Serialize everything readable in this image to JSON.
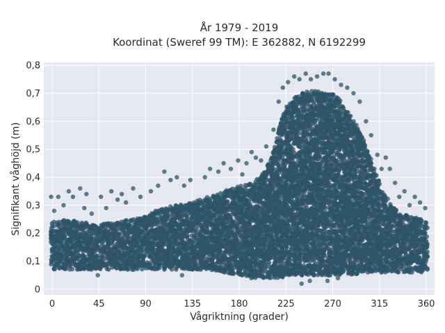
{
  "chart_data": {
    "type": "scatter",
    "title": [
      "År 1979 - 2019",
      "Koordinat (Sweref 99 TM): E 362882, N 6192299"
    ],
    "xlabel": "Vågriktning (grader)",
    "ylabel": "Signifikant våghöjd (m)",
    "xlim": [
      -8,
      368
    ],
    "ylim": [
      -0.02,
      0.81
    ],
    "xticks": [
      0,
      45,
      90,
      135,
      180,
      225,
      270,
      315,
      360
    ],
    "xtick_labels": [
      "0",
      "45",
      "90",
      "135",
      "180",
      "225",
      "270",
      "315",
      "360"
    ],
    "yticks": [
      0,
      0.1,
      0.2,
      0.3,
      0.4,
      0.5,
      0.6,
      0.7,
      0.8
    ],
    "ytick_labels": [
      "0",
      "0,1",
      "0,2",
      "0,3",
      "0,4",
      "0,5",
      "0,6",
      "0,7",
      "0,8"
    ],
    "grid": true,
    "point_color": "#2f5468",
    "background_color": "#e6e8f1",
    "envelope": {
      "description": "upper and lower bounds of the dense point cloud (direction in degrees, wave height in m)",
      "direction": [
        0,
        15,
        30,
        45,
        60,
        75,
        90,
        105,
        120,
        135,
        150,
        165,
        180,
        190,
        200,
        210,
        215,
        220,
        225,
        232,
        240,
        248,
        255,
        262,
        270,
        278,
        285,
        292,
        300,
        310,
        315,
        325,
        335,
        345,
        355,
        360
      ],
      "upper": [
        0.24,
        0.25,
        0.24,
        0.23,
        0.24,
        0.25,
        0.26,
        0.29,
        0.3,
        0.31,
        0.33,
        0.35,
        0.37,
        0.38,
        0.4,
        0.46,
        0.52,
        0.6,
        0.65,
        0.68,
        0.7,
        0.71,
        0.71,
        0.7,
        0.7,
        0.67,
        0.63,
        0.59,
        0.53,
        0.44,
        0.38,
        0.31,
        0.27,
        0.26,
        0.25,
        0.24
      ],
      "lower": [
        0.07,
        0.07,
        0.07,
        0.07,
        0.07,
        0.07,
        0.07,
        0.07,
        0.07,
        0.07,
        0.07,
        0.06,
        0.05,
        0.04,
        0.04,
        0.04,
        0.04,
        0.04,
        0.05,
        0.05,
        0.05,
        0.05,
        0.05,
        0.05,
        0.05,
        0.05,
        0.05,
        0.05,
        0.06,
        0.06,
        0.06,
        0.06,
        0.06,
        0.06,
        0.06,
        0.07
      ]
    },
    "outliers": [
      {
        "x": -1,
        "y": 0.33
      },
      {
        "x": 2,
        "y": 0.28
      },
      {
        "x": 6,
        "y": 0.33
      },
      {
        "x": 11,
        "y": 0.3
      },
      {
        "x": 16,
        "y": 0.35
      },
      {
        "x": 20,
        "y": 0.33
      },
      {
        "x": 27,
        "y": 0.36
      },
      {
        "x": 31,
        "y": 0.29
      },
      {
        "x": 33,
        "y": 0.34
      },
      {
        "x": 38,
        "y": 0.27
      },
      {
        "x": 47,
        "y": 0.33
      },
      {
        "x": 52,
        "y": 0.29
      },
      {
        "x": 57,
        "y": 0.35
      },
      {
        "x": 63,
        "y": 0.32
      },
      {
        "x": 67,
        "y": 0.34
      },
      {
        "x": 71,
        "y": 0.31
      },
      {
        "x": 78,
        "y": 0.36
      },
      {
        "x": 85,
        "y": 0.33
      },
      {
        "x": 95,
        "y": 0.35
      },
      {
        "x": 102,
        "y": 0.37
      },
      {
        "x": 108,
        "y": 0.42
      },
      {
        "x": 114,
        "y": 0.39
      },
      {
        "x": 120,
        "y": 0.4
      },
      {
        "x": 127,
        "y": 0.37
      },
      {
        "x": 133,
        "y": 0.39
      },
      {
        "x": 147,
        "y": 0.4
      },
      {
        "x": 152,
        "y": 0.43
      },
      {
        "x": 160,
        "y": 0.42
      },
      {
        "x": 165,
        "y": 0.45
      },
      {
        "x": 172,
        "y": 0.43
      },
      {
        "x": 179,
        "y": 0.46
      },
      {
        "x": 183,
        "y": 0.41
      },
      {
        "x": 187,
        "y": 0.45
      },
      {
        "x": 192,
        "y": 0.49
      },
      {
        "x": 196,
        "y": 0.47
      },
      {
        "x": 201,
        "y": 0.46
      },
      {
        "x": 206,
        "y": 0.51
      },
      {
        "x": 213,
        "y": 0.57
      },
      {
        "x": 218,
        "y": 0.67
      },
      {
        "x": 222,
        "y": 0.72
      },
      {
        "x": 227,
        "y": 0.74
      },
      {
        "x": 233,
        "y": 0.76
      },
      {
        "x": 238,
        "y": 0.75
      },
      {
        "x": 244,
        "y": 0.77
      },
      {
        "x": 249,
        "y": 0.75
      },
      {
        "x": 255,
        "y": 0.76
      },
      {
        "x": 261,
        "y": 0.77
      },
      {
        "x": 266,
        "y": 0.77
      },
      {
        "x": 272,
        "y": 0.75
      },
      {
        "x": 278,
        "y": 0.73
      },
      {
        "x": 284,
        "y": 0.72
      },
      {
        "x": 290,
        "y": 0.7
      },
      {
        "x": 296,
        "y": 0.67
      },
      {
        "x": 302,
        "y": 0.6
      },
      {
        "x": 307,
        "y": 0.55
      },
      {
        "x": 313,
        "y": 0.48
      },
      {
        "x": 317,
        "y": 0.43
      },
      {
        "x": 321,
        "y": 0.47
      },
      {
        "x": 325,
        "y": 0.43
      },
      {
        "x": 330,
        "y": 0.38
      },
      {
        "x": 334,
        "y": 0.33
      },
      {
        "x": 339,
        "y": 0.35
      },
      {
        "x": 344,
        "y": 0.3
      },
      {
        "x": 349,
        "y": 0.33
      },
      {
        "x": 354,
        "y": 0.31
      },
      {
        "x": 359,
        "y": 0.29
      },
      {
        "x": 240,
        "y": 0.02
      },
      {
        "x": 248,
        "y": 0.03
      },
      {
        "x": 265,
        "y": 0.03
      },
      {
        "x": 275,
        "y": 0.04
      },
      {
        "x": 44,
        "y": 0.05
      },
      {
        "x": 125,
        "y": 0.05
      }
    ]
  }
}
